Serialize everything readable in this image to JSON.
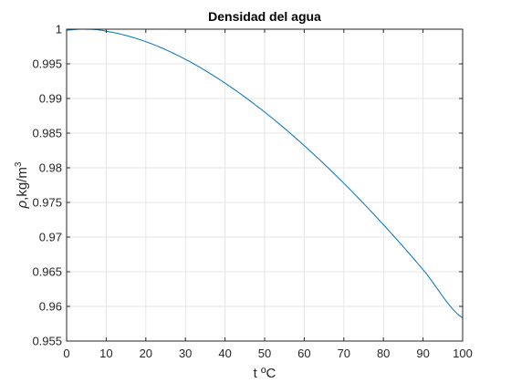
{
  "chart_data": {
    "type": "line",
    "title": "Densidad del agua",
    "xlabel": "t ºC",
    "ylabel_symbol": "ρ",
    "ylabel_unit": ",kg/m",
    "ylabel_exponent": "3",
    "xlim": [
      0,
      100
    ],
    "ylim": [
      0.955,
      1.0
    ],
    "xticks": [
      "0",
      "10",
      "20",
      "30",
      "40",
      "50",
      "60",
      "70",
      "80",
      "90",
      "100"
    ],
    "yticks": [
      "0.955",
      "0.96",
      "0.965",
      "0.97",
      "0.975",
      "0.98",
      "0.985",
      "0.99",
      "0.995",
      "1"
    ],
    "grid": true,
    "series": [
      {
        "color": "#0072BD",
        "x": [
          0,
          4,
          10,
          20,
          30,
          40,
          50,
          60,
          70,
          80,
          90,
          100
        ],
        "y": [
          0.99985,
          1.0,
          0.9997,
          0.9982,
          0.99565,
          0.99222,
          0.98804,
          0.9832,
          0.97777,
          0.97179,
          0.96531,
          0.95835
        ]
      }
    ]
  },
  "colors": {
    "line": "#0072BD",
    "grid": "#e6e6e6",
    "axis": "#262626"
  }
}
